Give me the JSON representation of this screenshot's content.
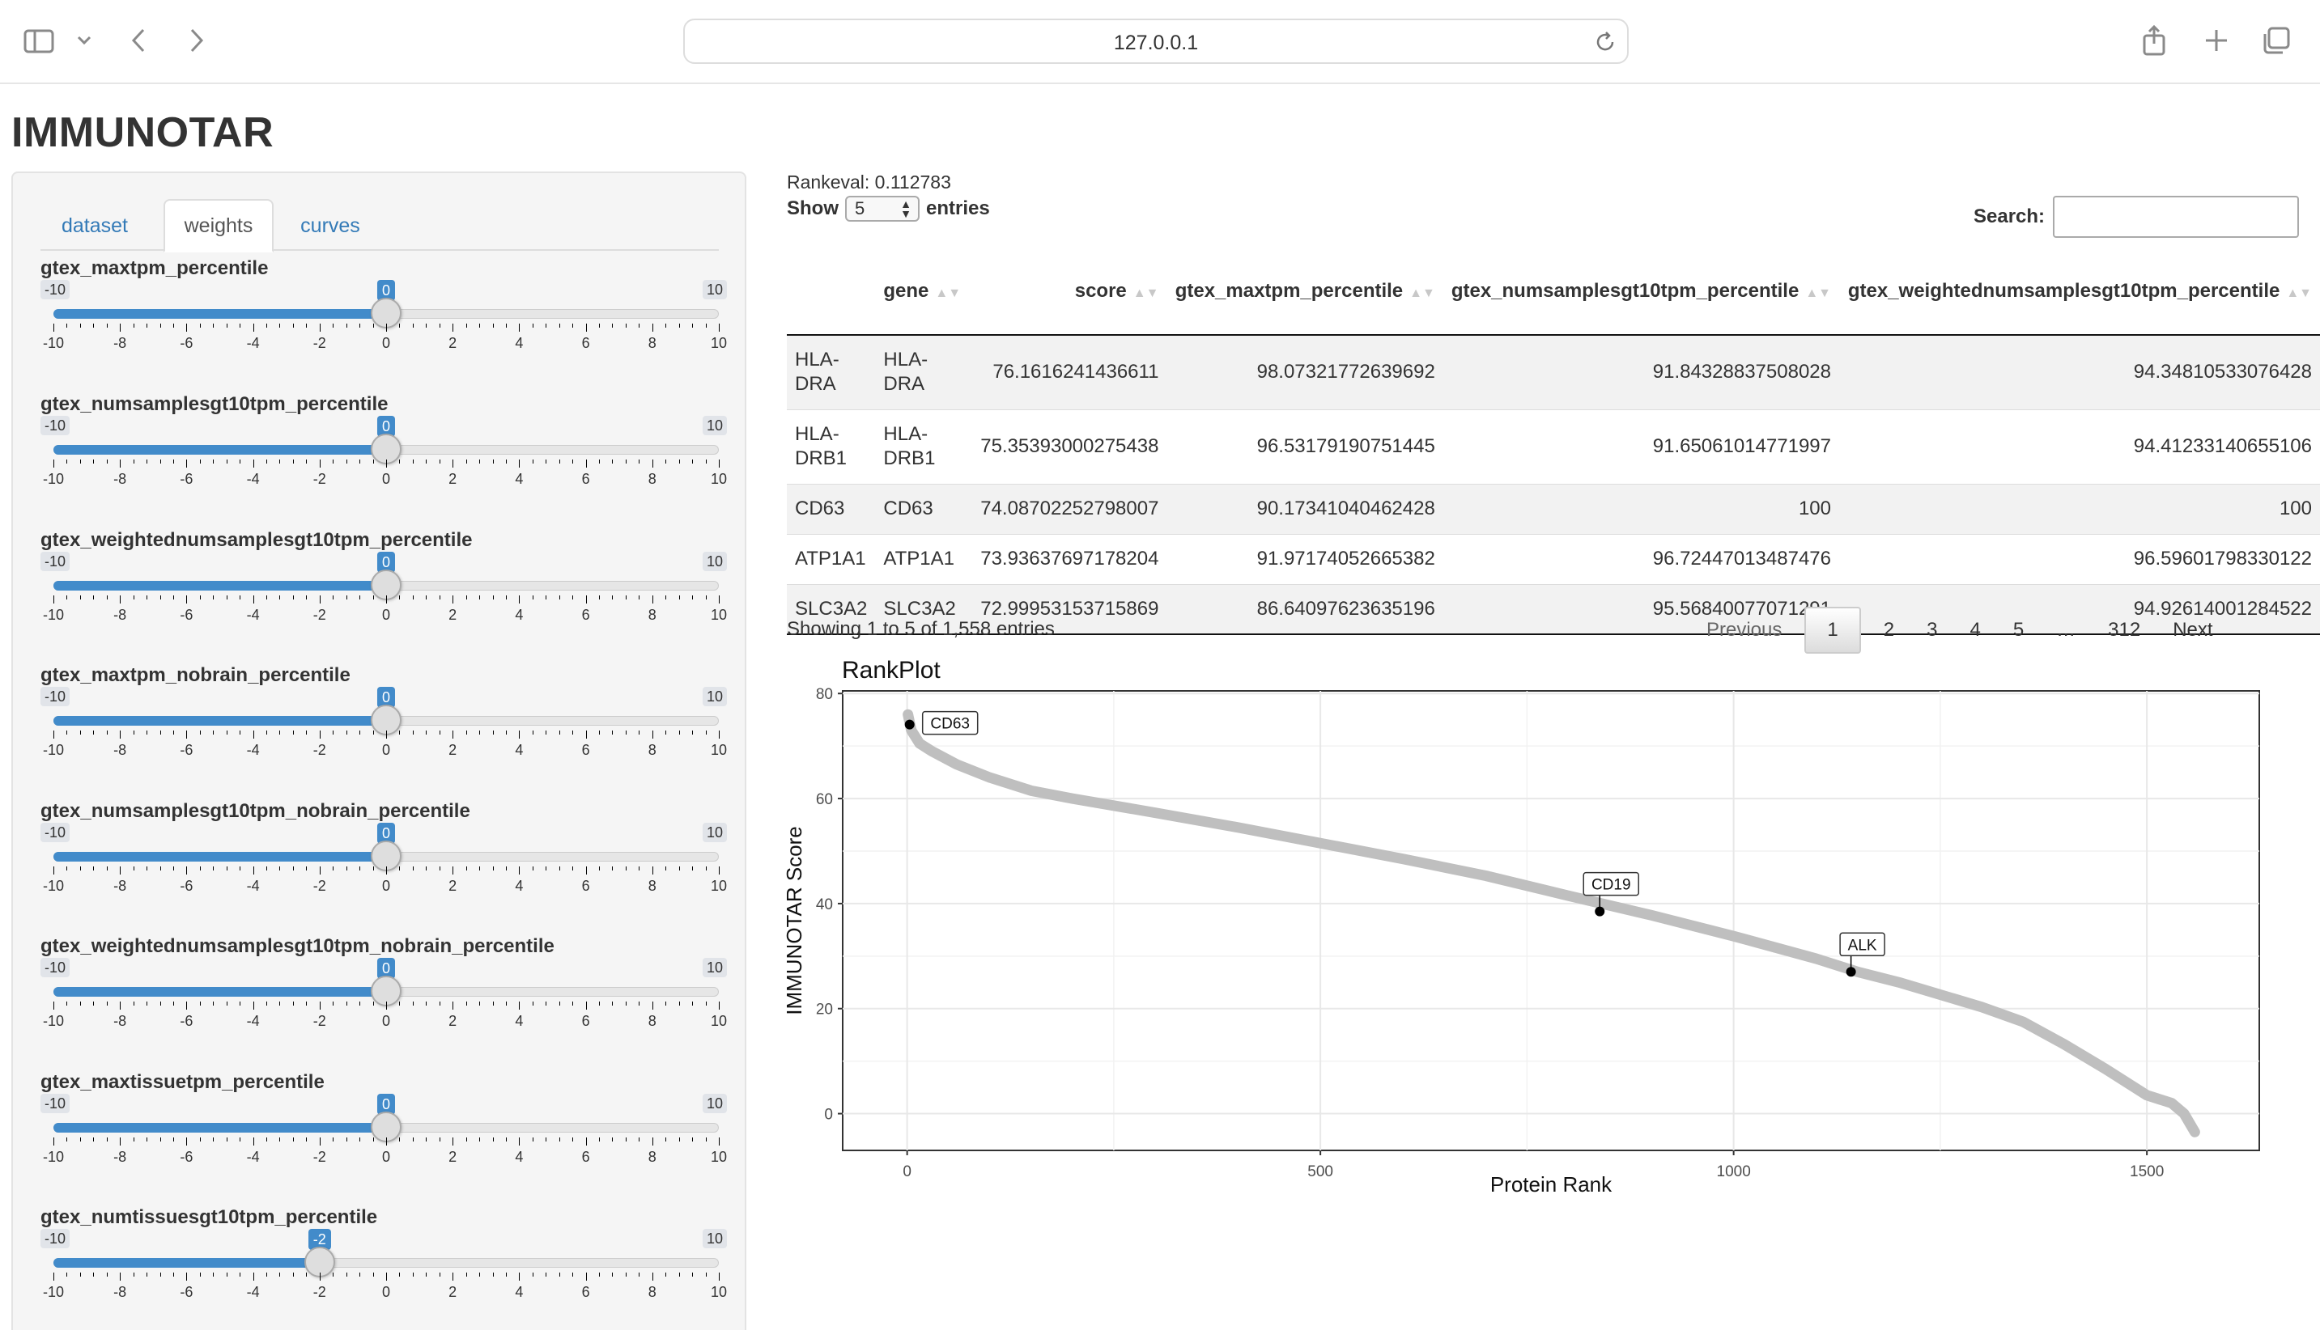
{
  "browser": {
    "url": "127.0.0.1",
    "icons": [
      "sidebar-icon",
      "chevron-down-icon",
      "back-icon",
      "forward-icon",
      "reload-icon",
      "share-icon",
      "new-tab-icon",
      "tabs-overview-icon"
    ]
  },
  "app": {
    "title": "IMMUNOTAR"
  },
  "tabs": [
    {
      "label": "dataset",
      "active": false
    },
    {
      "label": "weights",
      "active": true
    },
    {
      "label": "curves",
      "active": false
    }
  ],
  "sliders": [
    {
      "label": "gtex_maxtpm_percentile",
      "min": "-10",
      "max": "10",
      "value": "0"
    },
    {
      "label": "gtex_numsamplesgt10tpm_percentile",
      "min": "-10",
      "max": "10",
      "value": "0"
    },
    {
      "label": "gtex_weightednumsamplesgt10tpm_percentile",
      "min": "-10",
      "max": "10",
      "value": "0"
    },
    {
      "label": "gtex_maxtpm_nobrain_percentile",
      "min": "-10",
      "max": "10",
      "value": "0"
    },
    {
      "label": "gtex_numsamplesgt10tpm_nobrain_percentile",
      "min": "-10",
      "max": "10",
      "value": "0"
    },
    {
      "label": "gtex_weightednumsamplesgt10tpm_nobrain_percentile",
      "min": "-10",
      "max": "10",
      "value": "0"
    },
    {
      "label": "gtex_maxtissuetpm_percentile",
      "min": "-10",
      "max": "10",
      "value": "0"
    },
    {
      "label": "gtex_numtissuesgt10tpm_percentile",
      "min": "-10",
      "max": "10",
      "value": "-2"
    }
  ],
  "slider_ticks": [
    "-10",
    "-8",
    "-6",
    "-4",
    "-2",
    "0",
    "2",
    "4",
    "6",
    "8",
    "10"
  ],
  "main": {
    "rankeval": "Rankeval: 0.112783",
    "show_label": "Show",
    "show_value": "5",
    "entries_label": "entries",
    "search_label": "Search:",
    "search_value": "",
    "info": "Showing 1 to 5 of 1,558 entries"
  },
  "table": {
    "columns": [
      "",
      "gene",
      "score",
      "gtex_maxtpm_percentile",
      "gtex_numsamplesgt10tpm_percentile",
      "gtex_weightednumsamplesgt10tpm_percentile"
    ],
    "rows": [
      [
        "HLA-DRA",
        "HLA-DRA",
        "76.1616241436611",
        "98.07321772639692",
        "91.84328837508028",
        "94.34810533076428"
      ],
      [
        "HLA-DRB1",
        "HLA-DRB1",
        "75.35393000275438",
        "96.53179190751445",
        "91.65061014771997",
        "94.41233140655106"
      ],
      [
        "CD63",
        "CD63",
        "74.08702252798007",
        "90.17341040462428",
        "100",
        "100"
      ],
      [
        "ATP1A1",
        "ATP1A1",
        "73.93637697178204",
        "91.97174052665382",
        "96.72447013487476",
        "96.59601798330122"
      ],
      [
        "SLC3A2",
        "SLC3A2",
        "72.99953153715869",
        "86.64097623635196",
        "95.56840077071291",
        "94.92614001284522"
      ]
    ]
  },
  "pagination": {
    "previous": "Previous",
    "pages": [
      "1",
      "2",
      "3",
      "4",
      "5",
      "…",
      "312"
    ],
    "current": "1",
    "next": "Next"
  },
  "chart_data": {
    "type": "scatter",
    "title": "RankPlot",
    "xlabel": "Protein Rank",
    "ylabel": "IMMUNOTAR Score",
    "xlim": [
      -78,
      1636
    ],
    "ylim": [
      -7,
      80.5
    ],
    "xticks": [
      0,
      500,
      1000,
      1500
    ],
    "yticks": [
      0,
      20,
      40,
      60,
      80
    ],
    "grid": true,
    "curve": [
      [
        1,
        76
      ],
      [
        5,
        73
      ],
      [
        15,
        70.5
      ],
      [
        30,
        69
      ],
      [
        60,
        66.5
      ],
      [
        100,
        64
      ],
      [
        150,
        61.5
      ],
      [
        200,
        60
      ],
      [
        300,
        57.3
      ],
      [
        400,
        54.5
      ],
      [
        500,
        51.5
      ],
      [
        600,
        48.5
      ],
      [
        700,
        45.3
      ],
      [
        800,
        41.5
      ],
      [
        900,
        37.8
      ],
      [
        1000,
        33.8
      ],
      [
        1100,
        29.5
      ],
      [
        1150,
        27
      ],
      [
        1200,
        25
      ],
      [
        1300,
        20.3
      ],
      [
        1350,
        17.5
      ],
      [
        1400,
        13.2
      ],
      [
        1450,
        8.5
      ],
      [
        1480,
        5.5
      ],
      [
        1500,
        3.5
      ],
      [
        1530,
        2
      ],
      [
        1545,
        0
      ],
      [
        1558,
        -3.5
      ]
    ],
    "highlighted": [
      {
        "label": "CD63",
        "rank": 3,
        "score": 74.09
      },
      {
        "label": "CD19",
        "rank": 838,
        "score": 38.5
      },
      {
        "label": "ALK",
        "rank": 1142,
        "score": 27
      }
    ],
    "point_color": "#bfbfbf",
    "highlight_color": "#000000"
  }
}
